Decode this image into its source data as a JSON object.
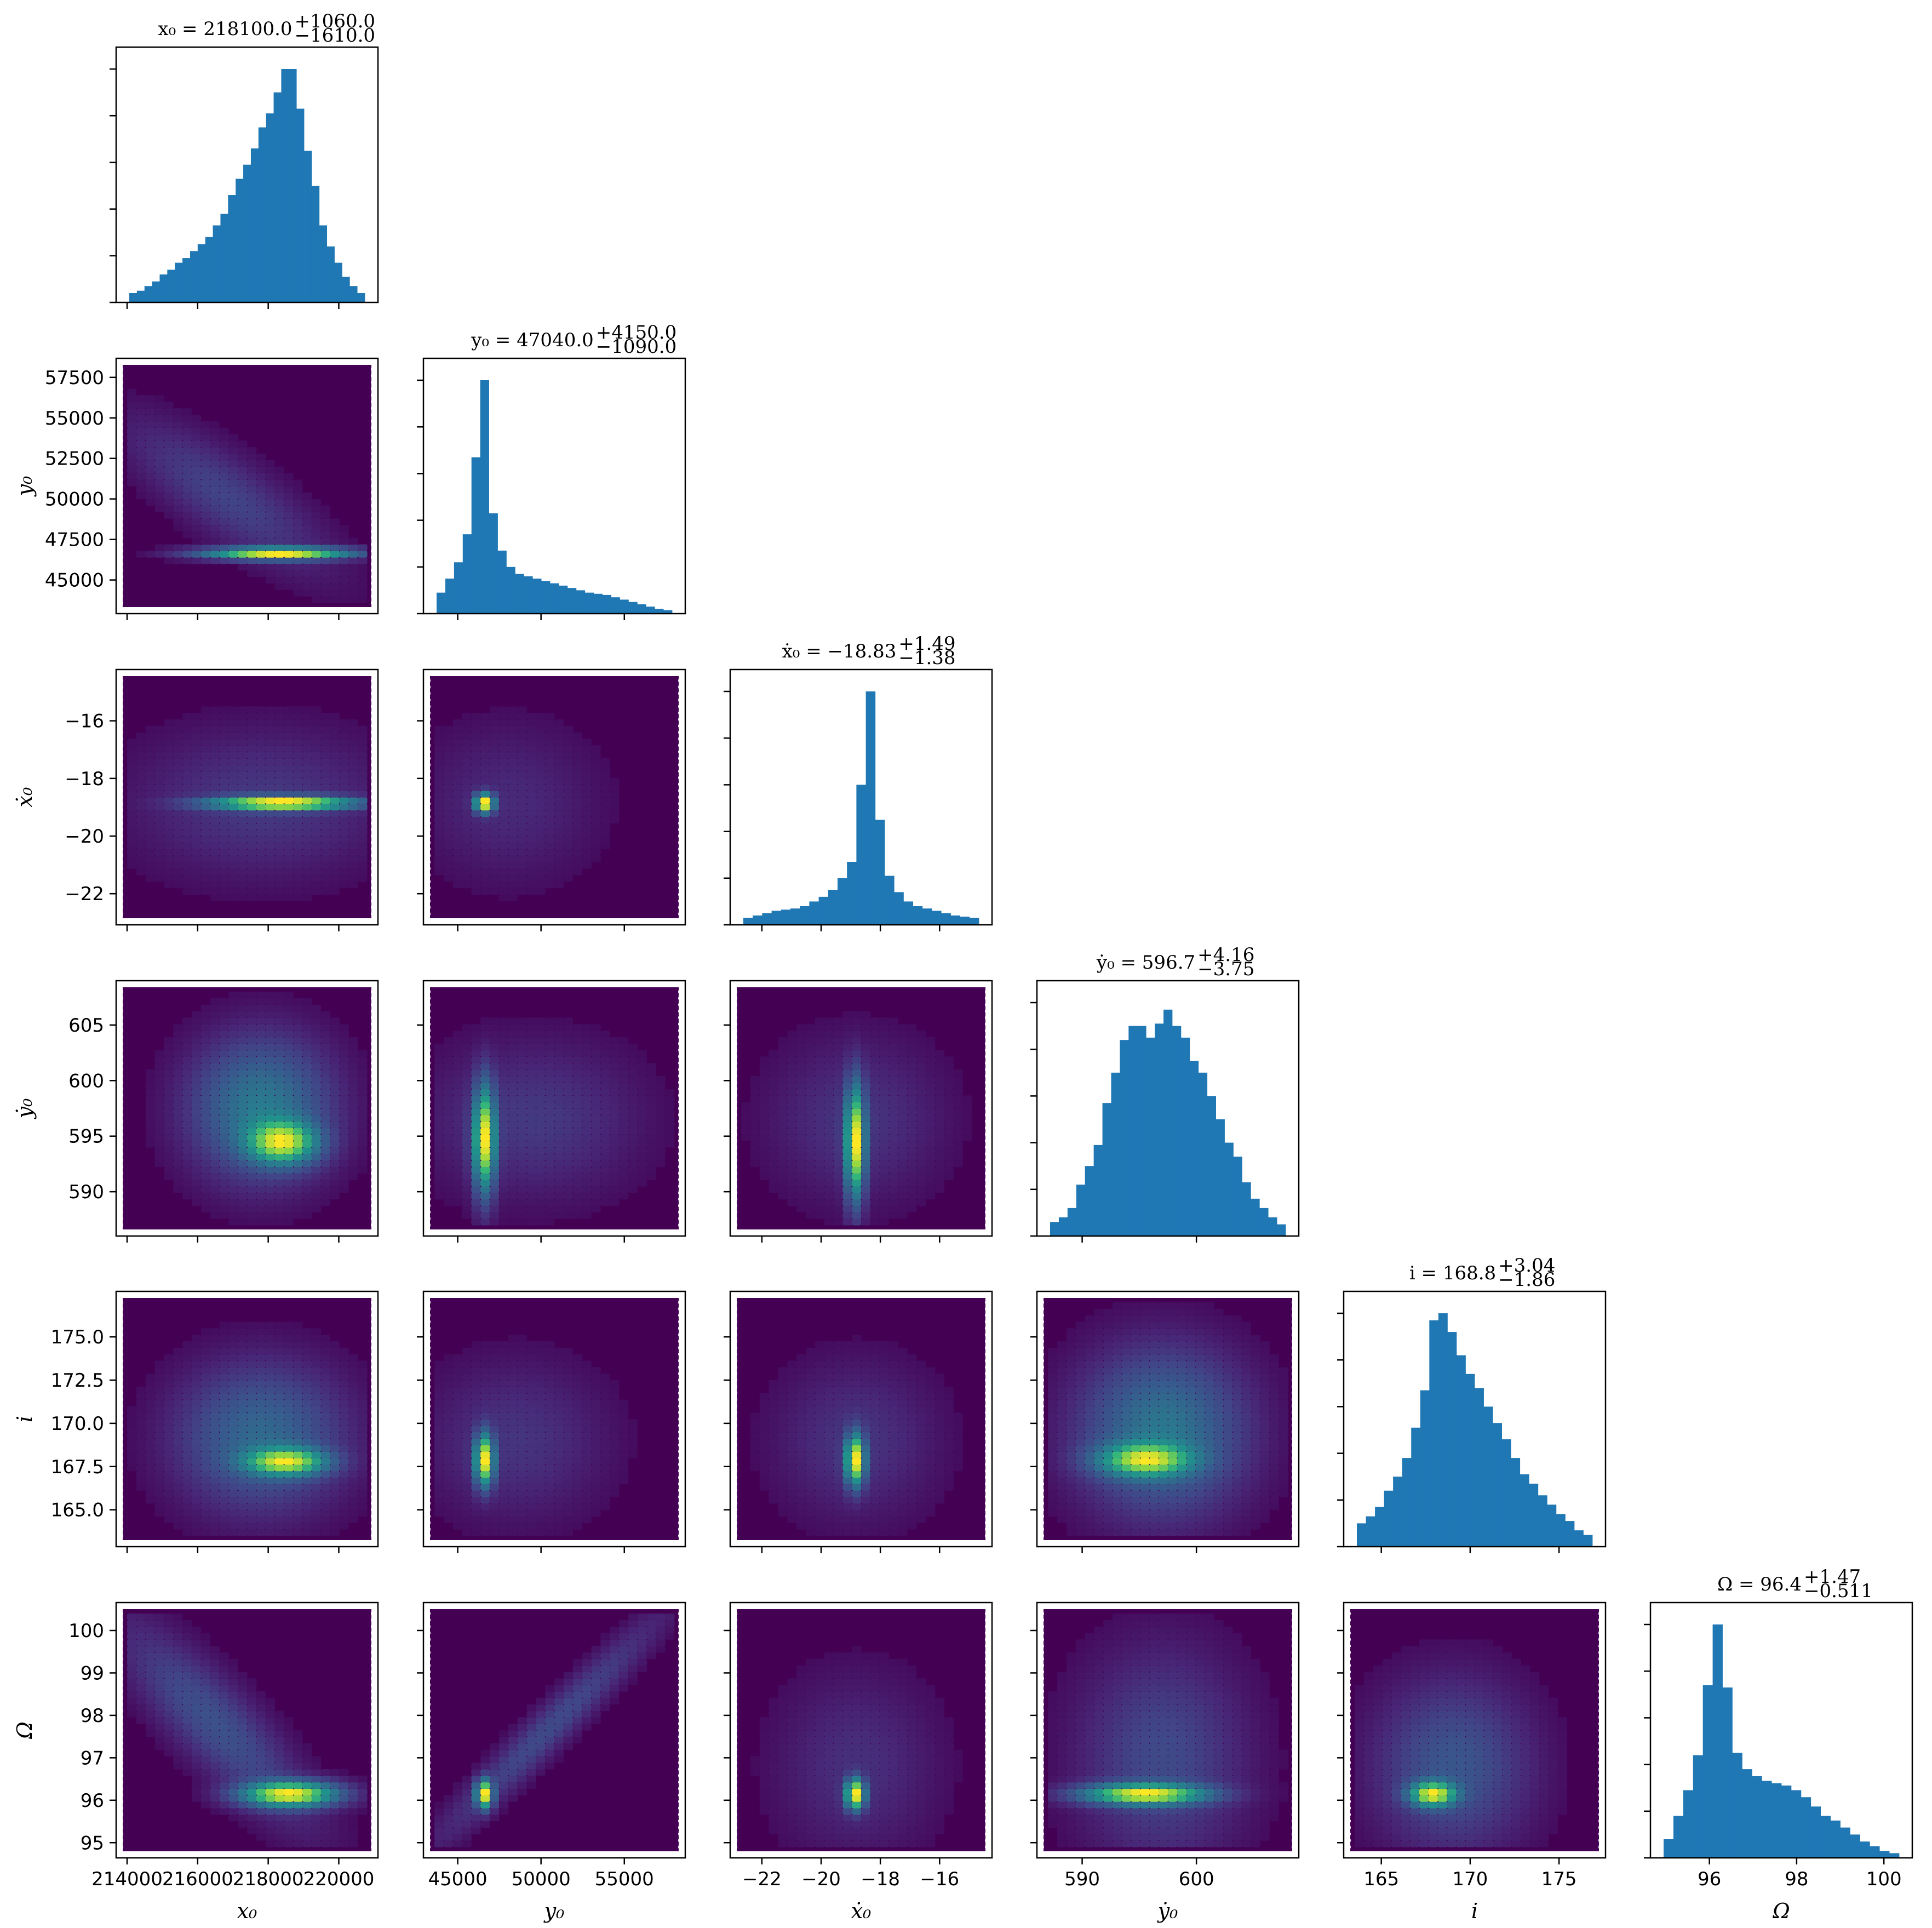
{
  "chart_data": {
    "type": "corner",
    "parameters": [
      {
        "key": "x0",
        "label": "x₀",
        "title": "x₀ = 218100.0",
        "title_plus": "+1060.0",
        "title_minus": "−1610.0",
        "range": [
          214000,
          220800
        ],
        "ticks": [
          214000,
          216000,
          218000,
          220000
        ],
        "tick_labels": [
          "214000",
          "216000",
          "218000",
          "220000"
        ]
      },
      {
        "key": "y0",
        "label": "y₀",
        "title": "y₀ = 47040.0",
        "title_plus": "+4150.0",
        "title_minus": "−1090.0",
        "range": [
          43600,
          58000
        ],
        "ticks": [
          45000,
          47500,
          50000,
          52500,
          55000,
          57500
        ],
        "tick_labels": [
          "45000",
          "47500",
          "50000",
          "52500",
          "55000",
          "57500"
        ],
        "x_ticks": [
          45000,
          50000,
          55000
        ],
        "x_tick_labels": [
          "45000",
          "50000",
          "55000"
        ]
      },
      {
        "key": "xdot0",
        "label": "ẋ₀",
        "title": "ẋ₀ = −18.83",
        "title_plus": "+1.49",
        "title_minus": "−1.38",
        "range": [
          -22.7,
          -14.6
        ],
        "ticks": [
          -22,
          -20,
          -18,
          -16
        ],
        "tick_labels": [
          "−22",
          "−20",
          "−18",
          "−16"
        ]
      },
      {
        "key": "ydot0",
        "label": "ẏ₀",
        "title": "ẏ₀ = 596.7",
        "title_plus": "+4.16",
        "title_minus": "−3.75",
        "range": [
          587,
          608
        ],
        "ticks": [
          590,
          595,
          600,
          605
        ],
        "tick_labels": [
          "590",
          "595",
          "600",
          "605"
        ],
        "x_ticks": [
          590,
          600
        ],
        "x_tick_labels": [
          "590",
          "600"
        ]
      },
      {
        "key": "i",
        "label": "i",
        "title": "i = 168.8",
        "title_plus": "+3.04",
        "title_minus": "−1.86",
        "range": [
          163.5,
          177
        ],
        "ticks": [
          165.0,
          167.5,
          170.0,
          172.5,
          175.0
        ],
        "tick_labels": [
          "165.0",
          "167.5",
          "170.0",
          "172.5",
          "175.0"
        ],
        "x_ticks": [
          165,
          170,
          175
        ],
        "x_tick_labels": [
          "165",
          "170",
          "175"
        ]
      },
      {
        "key": "Omega",
        "label": "Ω",
        "title": "Ω = 96.4",
        "title_plus": "+1.47",
        "title_minus": "−0.511",
        "range": [
          94.9,
          100.4
        ],
        "ticks": [
          95,
          96,
          97,
          98,
          99,
          100
        ],
        "tick_labels": [
          "95",
          "96",
          "97",
          "98",
          "99",
          "100"
        ],
        "x_ticks": [
          96,
          98,
          100
        ],
        "x_tick_labels": [
          "96",
          "98",
          "100"
        ]
      }
    ],
    "histograms": [
      [
        0.04,
        0.05,
        0.07,
        0.09,
        0.12,
        0.14,
        0.17,
        0.19,
        0.22,
        0.25,
        0.28,
        0.33,
        0.38,
        0.46,
        0.53,
        0.59,
        0.66,
        0.75,
        0.81,
        0.9,
        1.0,
        1.0,
        0.83,
        0.65,
        0.5,
        0.33,
        0.24,
        0.17,
        0.11,
        0.07,
        0.04
      ],
      [
        0.09,
        0.15,
        0.22,
        0.34,
        0.67,
        1.0,
        0.43,
        0.27,
        0.2,
        0.17,
        0.16,
        0.15,
        0.14,
        0.13,
        0.12,
        0.11,
        0.1,
        0.09,
        0.085,
        0.08,
        0.07,
        0.06,
        0.05,
        0.04,
        0.03,
        0.02,
        0.015
      ],
      [
        0.03,
        0.04,
        0.05,
        0.06,
        0.065,
        0.07,
        0.08,
        0.1,
        0.12,
        0.15,
        0.2,
        0.27,
        0.6,
        1.0,
        0.45,
        0.21,
        0.14,
        0.1,
        0.08,
        0.07,
        0.06,
        0.05,
        0.04,
        0.035,
        0.03
      ],
      [
        0.06,
        0.08,
        0.12,
        0.22,
        0.3,
        0.39,
        0.57,
        0.7,
        0.84,
        0.9,
        0.9,
        0.85,
        0.91,
        0.97,
        0.9,
        0.85,
        0.75,
        0.7,
        0.6,
        0.5,
        0.4,
        0.34,
        0.23,
        0.16,
        0.12,
        0.08,
        0.05
      ],
      [
        0.1,
        0.13,
        0.17,
        0.24,
        0.3,
        0.38,
        0.51,
        0.67,
        0.97,
        1.0,
        0.92,
        0.82,
        0.74,
        0.68,
        0.6,
        0.53,
        0.46,
        0.38,
        0.31,
        0.27,
        0.22,
        0.18,
        0.14,
        0.11,
        0.07,
        0.05
      ],
      [
        0.08,
        0.18,
        0.29,
        0.44,
        0.74,
        1.0,
        0.73,
        0.45,
        0.38,
        0.35,
        0.33,
        0.32,
        0.31,
        0.29,
        0.26,
        0.22,
        0.18,
        0.16,
        0.13,
        0.1,
        0.07,
        0.05,
        0.03,
        0.02
      ]
    ],
    "hist_color": "#1f77b4",
    "colormap": "viridis",
    "joint_modes": [
      {
        "row": 1,
        "col": 0,
        "comps": [
          {
            "mx": 218300,
            "my": 46650,
            "sx": 1200,
            "sy": 220,
            "w": 1.0
          },
          {
            "mx": 216800,
            "my": 50200,
            "sx": 1600,
            "sy": 2600,
            "w": 0.08,
            "cov": -0.8
          }
        ]
      },
      {
        "row": 2,
        "col": 0,
        "comps": [
          {
            "mx": 218400,
            "my": -18.85,
            "sx": 1200,
            "sy": 0.14,
            "w": 1.0
          },
          {
            "mx": 217800,
            "my": -18.85,
            "sx": 2000,
            "sy": 1.4,
            "w": 0.05
          }
        ]
      },
      {
        "row": 2,
        "col": 1,
        "comps": [
          {
            "mx": 46600,
            "my": -18.85,
            "sx": 350,
            "sy": 0.2,
            "w": 1.0
          },
          {
            "mx": 48000,
            "my": -18.85,
            "sx": 3000,
            "sy": 1.5,
            "w": 0.03
          }
        ]
      },
      {
        "row": 3,
        "col": 0,
        "comps": [
          {
            "mx": 218400,
            "my": 594.5,
            "sx": 600,
            "sy": 1.2,
            "w": 1.0
          },
          {
            "mx": 217800,
            "my": 597.5,
            "sx": 1100,
            "sy": 3.5,
            "w": 0.35
          }
        ]
      },
      {
        "row": 3,
        "col": 1,
        "comps": [
          {
            "mx": 46600,
            "my": 594.8,
            "sx": 400,
            "sy": 2.8,
            "w": 1.0
          },
          {
            "mx": 49500,
            "my": 596.5,
            "sx": 3500,
            "sy": 3.8,
            "w": 0.06
          }
        ]
      },
      {
        "row": 3,
        "col": 2,
        "comps": [
          {
            "mx": -18.85,
            "my": 594.5,
            "sx": 0.2,
            "sy": 3.0,
            "w": 1.0
          },
          {
            "mx": -18.8,
            "my": 596.5,
            "sx": 1.6,
            "sy": 4.0,
            "w": 0.05
          }
        ]
      },
      {
        "row": 4,
        "col": 0,
        "comps": [
          {
            "mx": 218500,
            "my": 167.8,
            "sx": 700,
            "sy": 0.5,
            "w": 1.0
          },
          {
            "mx": 217800,
            "my": 169.2,
            "sx": 1300,
            "sy": 2.3,
            "w": 0.25
          }
        ]
      },
      {
        "row": 4,
        "col": 1,
        "comps": [
          {
            "mx": 46600,
            "my": 167.9,
            "sx": 350,
            "sy": 0.9,
            "w": 1.0
          },
          {
            "mx": 48500,
            "my": 169,
            "sx": 3000,
            "sy": 2.5,
            "w": 0.05
          }
        ]
      },
      {
        "row": 4,
        "col": 2,
        "comps": [
          {
            "mx": -18.85,
            "my": 167.9,
            "sx": 0.2,
            "sy": 0.9,
            "w": 1.0
          },
          {
            "mx": -18.8,
            "my": 169,
            "sx": 1.5,
            "sy": 2.5,
            "w": 0.05
          }
        ]
      },
      {
        "row": 4,
        "col": 3,
        "comps": [
          {
            "mx": 595.5,
            "my": 167.9,
            "sx": 2.5,
            "sy": 0.6,
            "w": 1.0
          },
          {
            "mx": 597,
            "my": 169.5,
            "sx": 4,
            "sy": 2.6,
            "w": 0.35
          }
        ]
      },
      {
        "row": 5,
        "col": 0,
        "comps": [
          {
            "mx": 218600,
            "my": 96.15,
            "sx": 800,
            "sy": 0.18,
            "w": 1.0
          },
          {
            "mx": 216500,
            "my": 97.8,
            "sx": 1500,
            "sy": 1.3,
            "w": 0.12,
            "cov": -0.85
          }
        ]
      },
      {
        "row": 5,
        "col": 1,
        "comps": [
          {
            "mx": 46600,
            "my": 96.15,
            "sx": 300,
            "sy": 0.2,
            "w": 1.0
          },
          {
            "mx": 50500,
            "my": 97.7,
            "sx": 3800,
            "sy": 1.5,
            "w": 0.1,
            "cov": 0.97
          }
        ]
      },
      {
        "row": 5,
        "col": 2,
        "comps": [
          {
            "mx": -18.85,
            "my": 96.15,
            "sx": 0.2,
            "sy": 0.22,
            "w": 1.0
          },
          {
            "mx": -18.8,
            "my": 96.8,
            "sx": 1.5,
            "sy": 1.2,
            "w": 0.04
          }
        ]
      },
      {
        "row": 5,
        "col": 3,
        "comps": [
          {
            "mx": 595.5,
            "my": 96.15,
            "sx": 3.2,
            "sy": 0.15,
            "w": 1.0
          },
          {
            "mx": 597,
            "my": 97,
            "sx": 4,
            "sy": 1.4,
            "w": 0.1
          }
        ]
      },
      {
        "row": 5,
        "col": 4,
        "comps": [
          {
            "mx": 167.9,
            "my": 96.15,
            "sx": 0.8,
            "sy": 0.18,
            "w": 1.0
          },
          {
            "mx": 169,
            "my": 96.8,
            "sx": 2.4,
            "sy": 1.1,
            "w": 0.15
          }
        ]
      }
    ]
  }
}
